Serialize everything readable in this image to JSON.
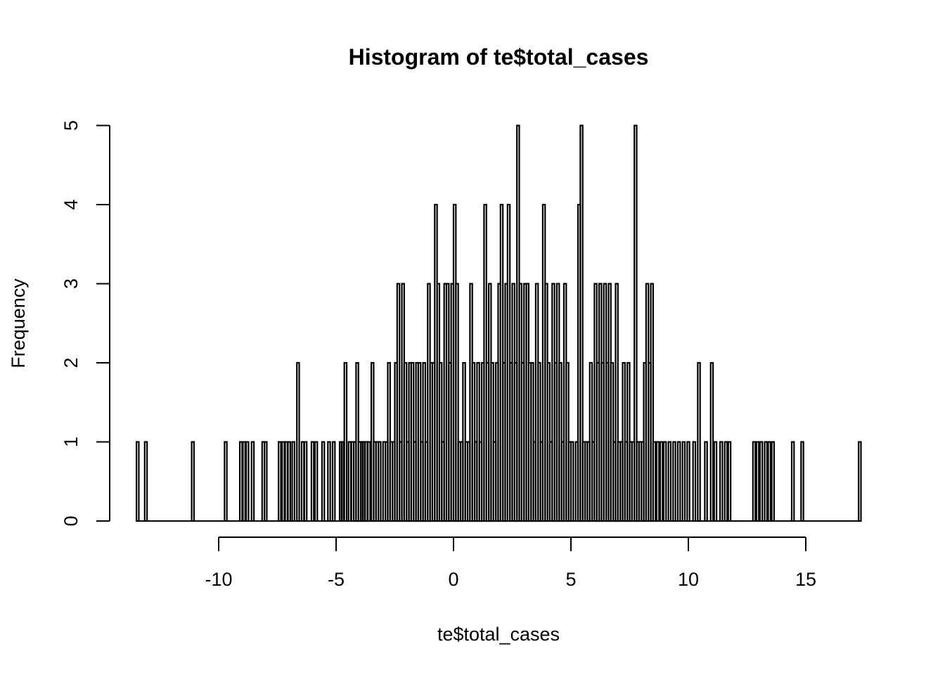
{
  "chart_data": {
    "type": "bar",
    "title": "Histogram of te$total_cases",
    "xlabel": "te$total_cases",
    "ylabel": "Frequency",
    "xlim": [
      -13.5,
      17.4
    ],
    "ylim": [
      0,
      5
    ],
    "x_ticks": [
      -10,
      -5,
      0,
      5,
      10,
      15
    ],
    "y_ticks": [
      0,
      1,
      2,
      3,
      4,
      5
    ],
    "x_tick_labels": [
      "-10",
      "-5",
      "0",
      "5",
      "10",
      "15"
    ],
    "y_tick_labels": [
      "0",
      "1",
      "2",
      "3",
      "4",
      "5"
    ],
    "grid": false,
    "bar_color": "#000000",
    "bars": [
      {
        "x": -13.45,
        "y": 1
      },
      {
        "x": -13.1,
        "y": 1
      },
      {
        "x": -11.1,
        "y": 1
      },
      {
        "x": -9.7,
        "y": 1
      },
      {
        "x": -9.05,
        "y": 1
      },
      {
        "x": -8.92,
        "y": 1
      },
      {
        "x": -8.78,
        "y": 1
      },
      {
        "x": -8.55,
        "y": 1
      },
      {
        "x": -8.1,
        "y": 1
      },
      {
        "x": -8.0,
        "y": 1
      },
      {
        "x": -7.4,
        "y": 1
      },
      {
        "x": -7.25,
        "y": 1
      },
      {
        "x": -7.12,
        "y": 1
      },
      {
        "x": -7.0,
        "y": 1
      },
      {
        "x": -6.82,
        "y": 1
      },
      {
        "x": -6.62,
        "y": 2
      },
      {
        "x": -6.42,
        "y": 1
      },
      {
        "x": -6.3,
        "y": 1
      },
      {
        "x": -6.0,
        "y": 1
      },
      {
        "x": -5.85,
        "y": 1
      },
      {
        "x": -5.55,
        "y": 1
      },
      {
        "x": -5.3,
        "y": 1
      },
      {
        "x": -5.1,
        "y": 1
      },
      {
        "x": -4.8,
        "y": 1
      },
      {
        "x": -4.72,
        "y": 1
      },
      {
        "x": -4.6,
        "y": 2
      },
      {
        "x": -4.42,
        "y": 1
      },
      {
        "x": -4.3,
        "y": 1
      },
      {
        "x": -4.2,
        "y": 1
      },
      {
        "x": -4.1,
        "y": 2
      },
      {
        "x": -4.0,
        "y": 1
      },
      {
        "x": -3.9,
        "y": 1
      },
      {
        "x": -3.82,
        "y": 1
      },
      {
        "x": -3.72,
        "y": 1
      },
      {
        "x": -3.6,
        "y": 1
      },
      {
        "x": -3.45,
        "y": 2
      },
      {
        "x": -3.35,
        "y": 1
      },
      {
        "x": -3.25,
        "y": 1
      },
      {
        "x": -3.15,
        "y": 1
      },
      {
        "x": -2.95,
        "y": 1
      },
      {
        "x": -2.85,
        "y": 1
      },
      {
        "x": -2.75,
        "y": 2
      },
      {
        "x": -2.65,
        "y": 1
      },
      {
        "x": -2.55,
        "y": 1
      },
      {
        "x": -2.45,
        "y": 2
      },
      {
        "x": -2.35,
        "y": 3
      },
      {
        "x": -2.25,
        "y": 1
      },
      {
        "x": -2.15,
        "y": 3
      },
      {
        "x": -2.05,
        "y": 2
      },
      {
        "x": -1.95,
        "y": 1
      },
      {
        "x": -1.85,
        "y": 2
      },
      {
        "x": -1.75,
        "y": 2
      },
      {
        "x": -1.65,
        "y": 1
      },
      {
        "x": -1.55,
        "y": 2
      },
      {
        "x": -1.45,
        "y": 2
      },
      {
        "x": -1.35,
        "y": 1
      },
      {
        "x": -1.25,
        "y": 2
      },
      {
        "x": -1.15,
        "y": 1
      },
      {
        "x": -1.05,
        "y": 3
      },
      {
        "x": -0.95,
        "y": 2
      },
      {
        "x": -0.85,
        "y": 2
      },
      {
        "x": -0.75,
        "y": 4
      },
      {
        "x": -0.65,
        "y": 3
      },
      {
        "x": -0.55,
        "y": 2
      },
      {
        "x": -0.45,
        "y": 1
      },
      {
        "x": -0.35,
        "y": 3
      },
      {
        "x": -0.25,
        "y": 3
      },
      {
        "x": -0.15,
        "y": 2
      },
      {
        "x": -0.05,
        "y": 3
      },
      {
        "x": 0.05,
        "y": 4
      },
      {
        "x": 0.15,
        "y": 3
      },
      {
        "x": 0.25,
        "y": 1
      },
      {
        "x": 0.35,
        "y": 1
      },
      {
        "x": 0.45,
        "y": 2
      },
      {
        "x": 0.55,
        "y": 1
      },
      {
        "x": 0.65,
        "y": 1
      },
      {
        "x": 0.75,
        "y": 3
      },
      {
        "x": 0.85,
        "y": 2
      },
      {
        "x": 0.95,
        "y": 1
      },
      {
        "x": 1.05,
        "y": 2
      },
      {
        "x": 1.15,
        "y": 1
      },
      {
        "x": 1.25,
        "y": 2
      },
      {
        "x": 1.35,
        "y": 4
      },
      {
        "x": 1.45,
        "y": 2
      },
      {
        "x": 1.55,
        "y": 3
      },
      {
        "x": 1.65,
        "y": 2
      },
      {
        "x": 1.75,
        "y": 1
      },
      {
        "x": 1.85,
        "y": 2
      },
      {
        "x": 1.95,
        "y": 3
      },
      {
        "x": 2.05,
        "y": 4
      },
      {
        "x": 2.15,
        "y": 2
      },
      {
        "x": 2.25,
        "y": 3
      },
      {
        "x": 2.35,
        "y": 4
      },
      {
        "x": 2.45,
        "y": 2
      },
      {
        "x": 2.55,
        "y": 3
      },
      {
        "x": 2.65,
        "y": 2
      },
      {
        "x": 2.75,
        "y": 5
      },
      {
        "x": 2.85,
        "y": 3
      },
      {
        "x": 2.95,
        "y": 2
      },
      {
        "x": 3.05,
        "y": 3
      },
      {
        "x": 3.15,
        "y": 3
      },
      {
        "x": 3.25,
        "y": 2
      },
      {
        "x": 3.35,
        "y": 2
      },
      {
        "x": 3.45,
        "y": 1
      },
      {
        "x": 3.55,
        "y": 3
      },
      {
        "x": 3.65,
        "y": 2
      },
      {
        "x": 3.75,
        "y": 1
      },
      {
        "x": 3.85,
        "y": 4
      },
      {
        "x": 3.95,
        "y": 3
      },
      {
        "x": 4.05,
        "y": 2
      },
      {
        "x": 4.15,
        "y": 1
      },
      {
        "x": 4.25,
        "y": 3
      },
      {
        "x": 4.35,
        "y": 2
      },
      {
        "x": 4.45,
        "y": 3
      },
      {
        "x": 4.55,
        "y": 2
      },
      {
        "x": 4.65,
        "y": 1
      },
      {
        "x": 4.75,
        "y": 3
      },
      {
        "x": 4.85,
        "y": 2
      },
      {
        "x": 4.95,
        "y": 1
      },
      {
        "x": 5.05,
        "y": 1
      },
      {
        "x": 5.15,
        "y": 0
      },
      {
        "x": 5.25,
        "y": 1
      },
      {
        "x": 5.35,
        "y": 4
      },
      {
        "x": 5.45,
        "y": 5
      },
      {
        "x": 5.55,
        "y": 1
      },
      {
        "x": 5.65,
        "y": 1
      },
      {
        "x": 5.75,
        "y": 1
      },
      {
        "x": 5.85,
        "y": 2
      },
      {
        "x": 5.95,
        "y": 1
      },
      {
        "x": 6.05,
        "y": 3
      },
      {
        "x": 6.15,
        "y": 2
      },
      {
        "x": 6.25,
        "y": 3
      },
      {
        "x": 6.35,
        "y": 2
      },
      {
        "x": 6.45,
        "y": 3
      },
      {
        "x": 6.55,
        "y": 2
      },
      {
        "x": 6.65,
        "y": 3
      },
      {
        "x": 6.75,
        "y": 2
      },
      {
        "x": 6.85,
        "y": 1
      },
      {
        "x": 6.95,
        "y": 3
      },
      {
        "x": 7.05,
        "y": 1
      },
      {
        "x": 7.15,
        "y": 1
      },
      {
        "x": 7.25,
        "y": 2
      },
      {
        "x": 7.35,
        "y": 1
      },
      {
        "x": 7.45,
        "y": 2
      },
      {
        "x": 7.55,
        "y": 1
      },
      {
        "x": 7.65,
        "y": 1
      },
      {
        "x": 7.75,
        "y": 5
      },
      {
        "x": 7.85,
        "y": 1
      },
      {
        "x": 7.95,
        "y": 1
      },
      {
        "x": 8.05,
        "y": 1
      },
      {
        "x": 8.15,
        "y": 2
      },
      {
        "x": 8.25,
        "y": 3
      },
      {
        "x": 8.35,
        "y": 2
      },
      {
        "x": 8.45,
        "y": 3
      },
      {
        "x": 8.55,
        "y": 1
      },
      {
        "x": 8.7,
        "y": 1
      },
      {
        "x": 8.85,
        "y": 1
      },
      {
        "x": 9.0,
        "y": 1
      },
      {
        "x": 9.2,
        "y": 1
      },
      {
        "x": 9.4,
        "y": 1
      },
      {
        "x": 9.6,
        "y": 1
      },
      {
        "x": 9.8,
        "y": 1
      },
      {
        "x": 10.0,
        "y": 1
      },
      {
        "x": 10.25,
        "y": 1
      },
      {
        "x": 10.45,
        "y": 2
      },
      {
        "x": 10.75,
        "y": 1
      },
      {
        "x": 11.0,
        "y": 2
      },
      {
        "x": 11.15,
        "y": 1
      },
      {
        "x": 11.4,
        "y": 1
      },
      {
        "x": 11.6,
        "y": 1
      },
      {
        "x": 11.75,
        "y": 1
      },
      {
        "x": 12.8,
        "y": 1
      },
      {
        "x": 12.95,
        "y": 1
      },
      {
        "x": 13.1,
        "y": 1
      },
      {
        "x": 13.3,
        "y": 1
      },
      {
        "x": 13.45,
        "y": 1
      },
      {
        "x": 13.6,
        "y": 1
      },
      {
        "x": 14.45,
        "y": 1
      },
      {
        "x": 14.85,
        "y": 1
      },
      {
        "x": 17.3,
        "y": 1
      }
    ]
  }
}
